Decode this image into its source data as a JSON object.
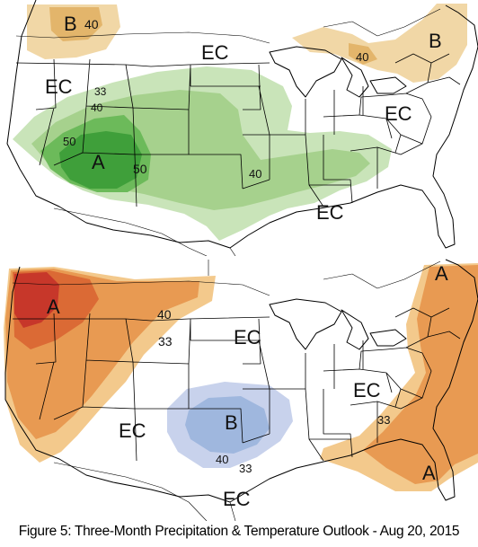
{
  "caption": "Figure 5: Three-Month Precipitation & Temperature Outlook - Aug 20, 2015",
  "colors": {
    "above_precip_33": "#c9e4b9",
    "above_precip_40": "#a6d18d",
    "above_precip_50": "#6cba5a",
    "above_precip_60": "#3f9f3a",
    "below_precip_33": "#f1d7a6",
    "below_precip_40": "#e3b56b",
    "above_temp_33": "#f3c98c",
    "above_temp_40": "#e89a52",
    "above_temp_50": "#db6a35",
    "above_temp_60": "#c7372a",
    "below_temp_33": "#c8d2ec",
    "below_temp_40": "#9fb7de"
  },
  "precip_map": {
    "labels": {
      "b_nw": "B",
      "v40_nw": "40",
      "ec_north": "EC",
      "b_ne": "B",
      "v40_ne": "40",
      "ec_west": "EC",
      "v33_w": "33",
      "v40_w": "40",
      "ec_east": "EC",
      "v50_w": "50",
      "a": "A",
      "v50_c": "50",
      "v40_c": "40",
      "ec_south": "EC"
    }
  },
  "temp_map": {
    "labels": {
      "a_nw": "A",
      "a_ne": "A",
      "v40_n": "40",
      "v33_n": "33",
      "ec_c": "EC",
      "ec_e": "EC",
      "ec_sw": "EC",
      "b": "B",
      "v33_se": "33",
      "v40_s": "40",
      "v33_s": "33",
      "a_se": "A",
      "ec_s": "EC"
    }
  }
}
